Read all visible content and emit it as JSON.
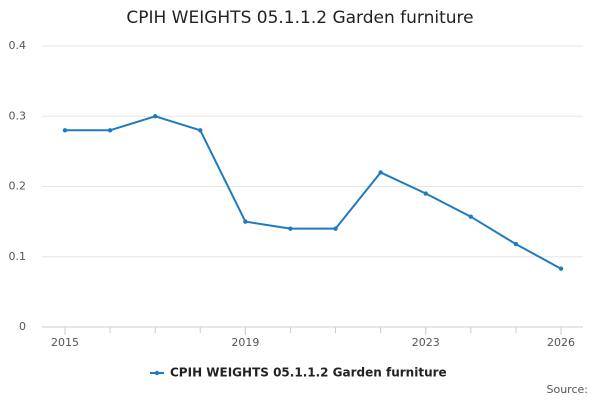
{
  "chart_data": {
    "type": "line",
    "title": "CPIH WEIGHTS 05.1.1.2 Garden furniture",
    "x": [
      2015,
      2016,
      2017,
      2018,
      2019,
      2020,
      2021,
      2022,
      2023,
      2024,
      2025,
      2026
    ],
    "series": [
      {
        "name": "CPIH WEIGHTS 05.1.1.2 Garden furniture",
        "color": "#1f7bbf",
        "values": [
          0.28,
          0.28,
          0.3,
          0.28,
          0.15,
          0.14,
          0.14,
          0.22,
          0.19,
          0.157,
          0.118,
          0.083
        ]
      }
    ],
    "xlim": [
      2015,
      2026
    ],
    "xticks": [
      2015,
      2019,
      2023,
      2026
    ],
    "ylim": [
      0,
      0.4
    ],
    "yticks": [
      0,
      0.1,
      0.2,
      0.3,
      0.4
    ],
    "grid": true,
    "source": "Source:"
  }
}
